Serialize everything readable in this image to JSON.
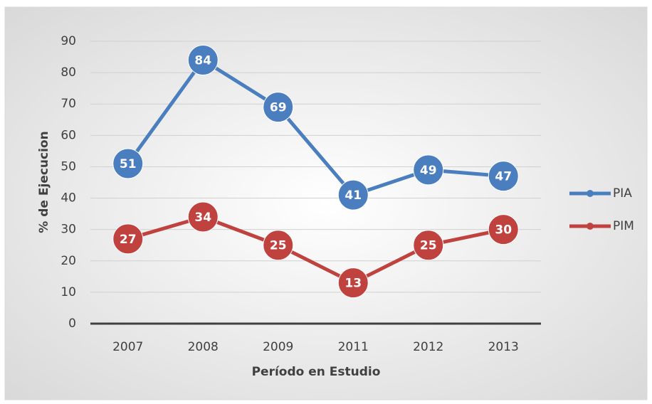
{
  "chart_data": {
    "type": "line",
    "categories": [
      "2007",
      "2008",
      "2009",
      "2011",
      "2012",
      "2013"
    ],
    "series": [
      {
        "name": "PIA",
        "color": "#4a7ebf",
        "values": [
          51,
          84,
          69,
          41,
          49,
          47
        ]
      },
      {
        "name": "PIM",
        "color": "#c0423f",
        "values": [
          27,
          34,
          25,
          13,
          25,
          30
        ]
      }
    ],
    "x_label": "Período en Estudio",
    "y_label": "% de Ejecucion",
    "ylim": [
      0,
      90
    ],
    "yticks": [
      0,
      10,
      20,
      30,
      40,
      50,
      60,
      70,
      80,
      90
    ],
    "grid": true,
    "legend": "right"
  }
}
